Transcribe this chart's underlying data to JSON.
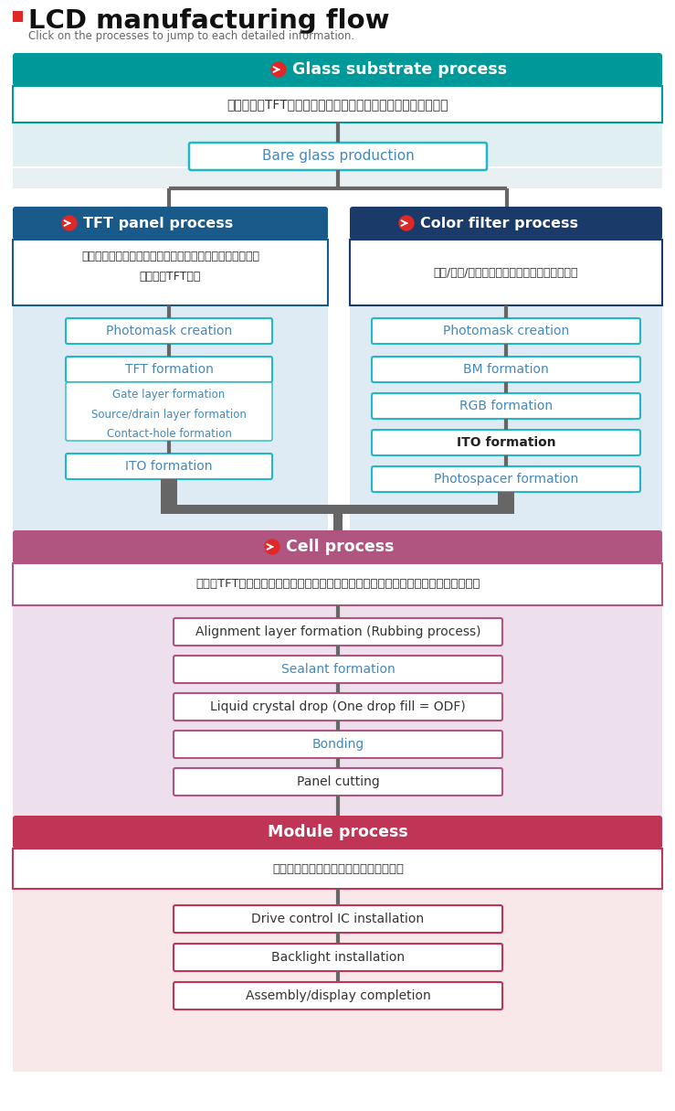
{
  "title": "LCD manufacturing flow",
  "subtitle": "Click on the processes to jump to each detailed information.",
  "glass_header": "Glass substrate process",
  "glass_desc": "创建将成为TFT面板和彩色滤光片基础的玻璃基板（裸玻璃）。",
  "bare_glass": "Bare glass production",
  "tft_header": "TFT panel process",
  "tft_desc1": "在玻璃基板上堆叠几层电极，形成控制每个像素图像的薄膜",
  "tft_desc2": "晋体管（TFT）。",
  "cf_header": "Color filter process",
  "cf_desc": "红色/绿色/蓝色应用于玻璃基板上的每个像素。",
  "tft_steps": [
    "Photomask creation",
    "TFT formation",
    "ITO formation"
  ],
  "tft_sub": [
    "Gate layer formation",
    "Source/drain layer formation",
    "Contact-hole formation"
  ],
  "cf_steps": [
    "Photomask creation",
    "BM formation",
    "RGB formation",
    "ITO formation",
    "Photospacer formation"
  ],
  "cell_header": "Cell process",
  "cell_desc": "通过将TFT面板和彩色滤光片粘合在一起来包裹液晶材料，然后切割成显示器的尺尧。",
  "cell_steps": [
    "Alignment layer formation (Rubbing process)",
    "Sealant formation",
    "Liquid crystal drop (One drop fill = ODF)",
    "Bonding",
    "Panel cutting"
  ],
  "cell_blue": [
    1,
    3
  ],
  "module_header": "Module process",
  "module_desc": "进行周围零件的安装和组装以完成显示。",
  "module_steps": [
    "Drive control IC installation",
    "Backlight installation",
    "Assembly/display completion"
  ],
  "c_teal": "#009999",
  "c_blue_tft": "#1a5a8a",
  "c_blue_cf": "#1a3a6a",
  "c_cell": "#b05580",
  "c_module": "#c03555",
  "c_teal_box": "#22b8cc",
  "c_arrow": "#666666",
  "c_text_blue": "#4488bb",
  "c_red": "#e02828",
  "c_bg_glass": "#d8eff0",
  "c_bg_tft": "#d8e8f4",
  "c_bg_cell": "#ede0ec",
  "c_bg_module": "#f8e8ea"
}
